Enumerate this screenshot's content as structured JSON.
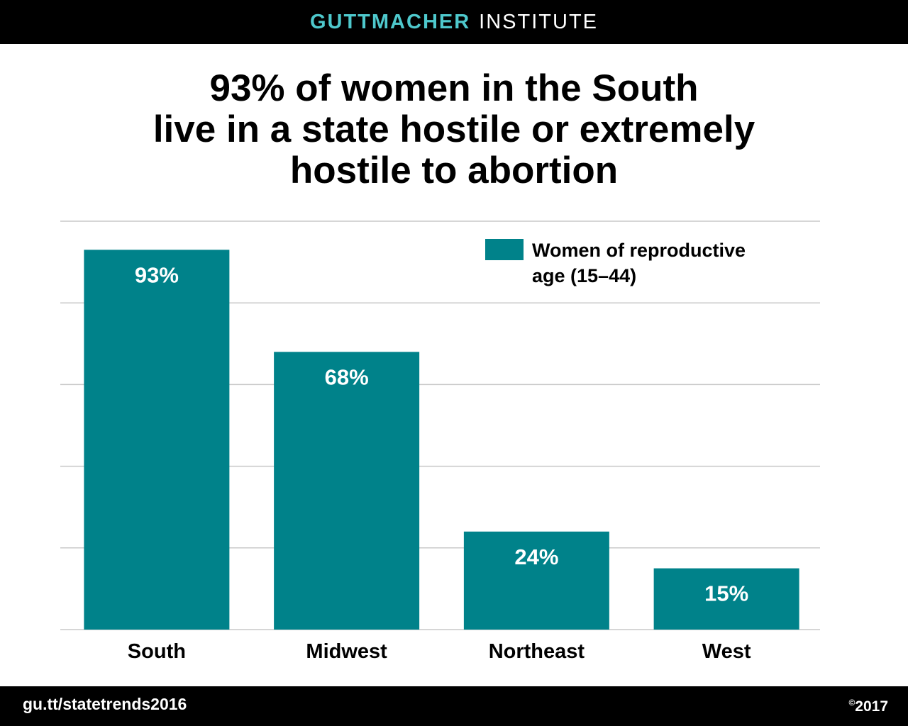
{
  "header": {
    "brand_accent": "GUTTMACHER",
    "brand_rest": "INSTITUTE"
  },
  "title_lines": [
    "93% of women in the South",
    "live in a state hostile or extremely",
    "hostile to abortion"
  ],
  "footer": {
    "url": "gu.tt/statetrends2016",
    "copyright_symbol": "©",
    "copyright_year": "2017"
  },
  "colors": {
    "bar": "#00828a",
    "brand_accent": "#4ec8cc",
    "grid": "#c8c8c8"
  },
  "chart_data": {
    "type": "bar",
    "categories": [
      "South",
      "Midwest",
      "Northeast",
      "West"
    ],
    "series": [
      {
        "name": "Women of reproductive age (15–44)",
        "values": [
          93,
          68,
          24,
          15
        ],
        "labels": [
          "93%",
          "68%",
          "24%",
          "15%"
        ]
      }
    ],
    "legend_lines": [
      "Women of reproductive",
      "age (15–44)"
    ],
    "ylim": [
      0,
      100
    ],
    "grid": true,
    "legend_position": "top-right"
  }
}
